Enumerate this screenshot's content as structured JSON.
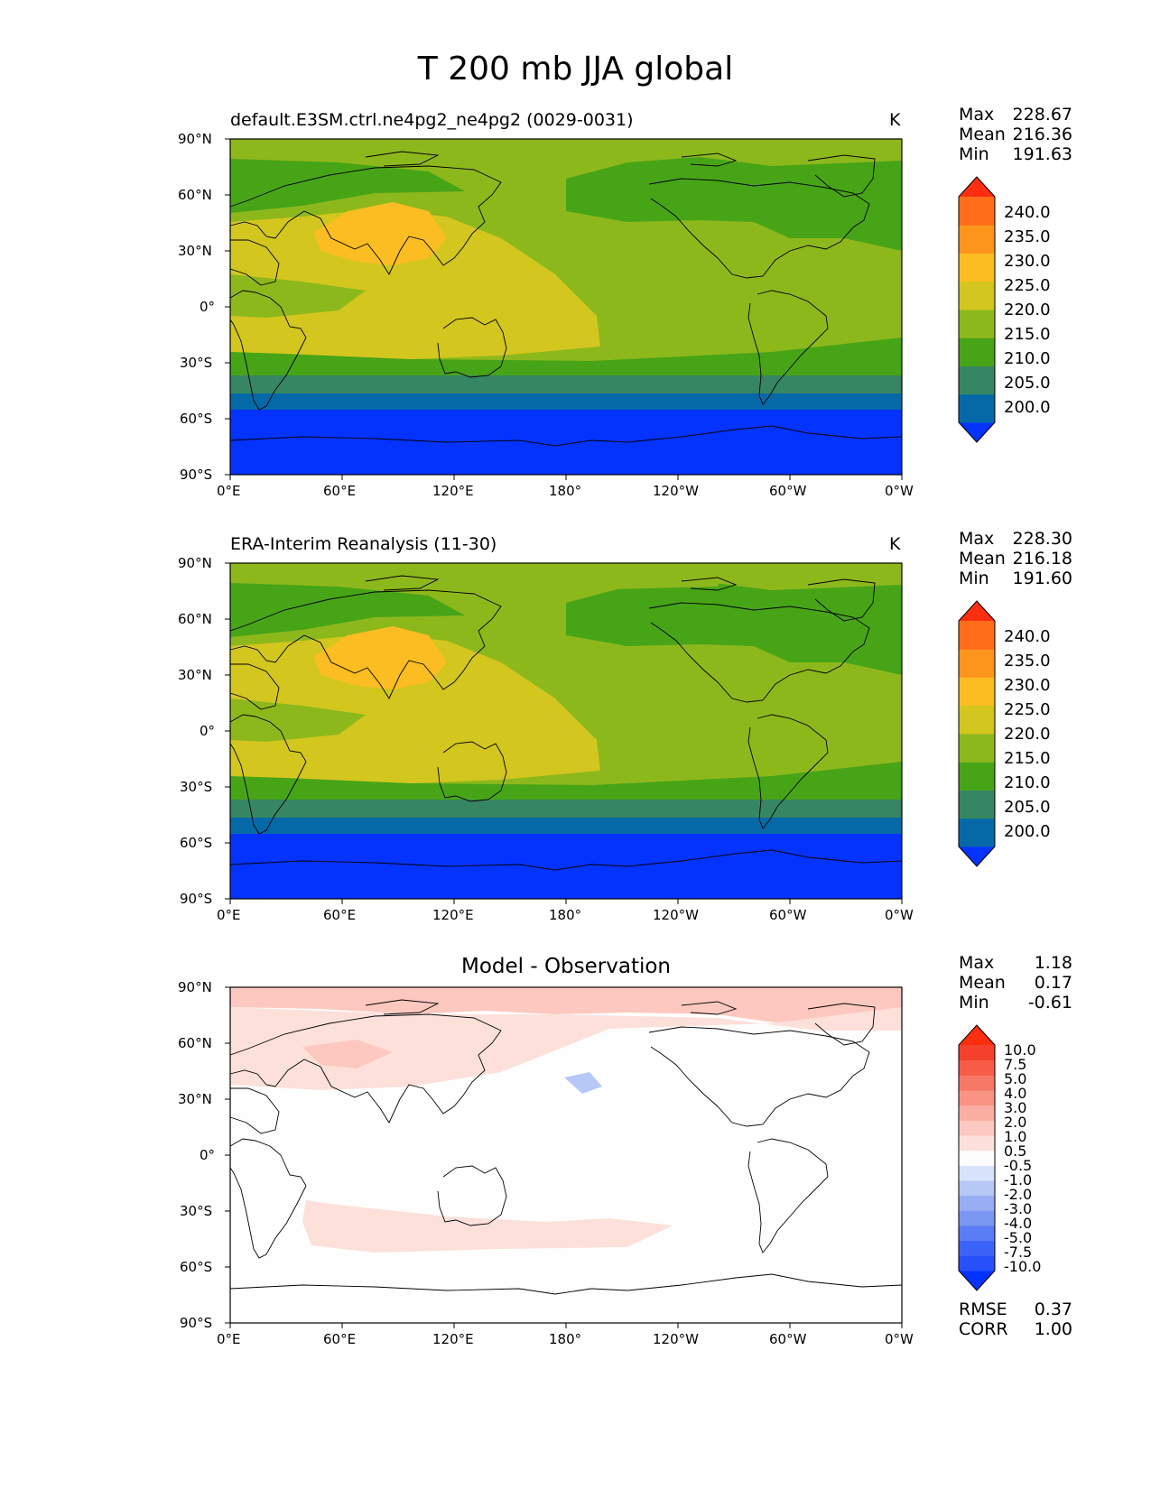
{
  "figure": {
    "title": "T 200 mb JJA global"
  },
  "panels": [
    {
      "id": "test",
      "title": "default.E3SM.ctrl.ne4pg2_ne4pg2 (0029-0031)",
      "units": "K",
      "stats": {
        "max_label": "Max",
        "max": "228.67",
        "mean_label": "Mean",
        "mean": "216.36",
        "min_label": "Min",
        "min": "191.63"
      }
    },
    {
      "id": "reference",
      "title": "ERA-Interim Reanalysis (11-30)",
      "units": "K",
      "stats": {
        "max_label": "Max",
        "max": "228.30",
        "mean_label": "Mean",
        "mean": "216.18",
        "min_label": "Min",
        "min": "191.60"
      }
    },
    {
      "id": "diff",
      "title": "Model - Observation",
      "units": "",
      "stats": {
        "max_label": "Max",
        "max": "1.18",
        "mean_label": "Mean",
        "mean": "0.17",
        "min_label": "Min",
        "min": "-0.61",
        "rmse_label": "RMSE",
        "rmse": "0.37",
        "corr_label": "CORR",
        "corr": "1.00"
      }
    }
  ],
  "axes": {
    "lat_ticks": [
      "90°N",
      "60°N",
      "30°N",
      "0°",
      "30°S",
      "60°S",
      "90°S"
    ],
    "lon_ticks": [
      "0°E",
      "60°E",
      "120°E",
      "180°",
      "120°W",
      "60°W",
      "0°W"
    ]
  },
  "colorbars": {
    "main": {
      "levels": [
        "200.0",
        "205.0",
        "210.0",
        "215.0",
        "220.0",
        "225.0",
        "230.0",
        "235.0",
        "240.0"
      ],
      "colors": [
        "#0433ff",
        "#0569a8",
        "#378663",
        "#47a417",
        "#8db81c",
        "#d2c61f",
        "#fbbd21",
        "#fd951d",
        "#fe6d19",
        "#ff2e10"
      ]
    },
    "diff": {
      "levels": [
        "-10.0",
        "-7.5",
        "-5.0",
        "-4.0",
        "-3.0",
        "-2.0",
        "-1.0",
        "-0.5",
        "0.5",
        "1.0",
        "2.0",
        "3.0",
        "4.0",
        "5.0",
        "7.5",
        "10.0"
      ],
      "colors": [
        "#0433ff",
        "#2750fb",
        "#3c63f7",
        "#5a7cf4",
        "#7a97f1",
        "#98adf3",
        "#b7c8f7",
        "#d8e2fb",
        "#fdfdfd",
        "#fde0da",
        "#fdc8c0",
        "#fbaea2",
        "#f99384",
        "#f77766",
        "#f65c48",
        "#f3412b",
        "#ff2e10"
      ]
    }
  },
  "map_data": {
    "variable": "T",
    "level": "200 mb",
    "season": "JJA",
    "region": "global",
    "projection": "PlateCarree",
    "central_longitude": 180,
    "lat_range": [
      -90,
      90
    ],
    "lon_range": [
      0,
      360
    ]
  }
}
